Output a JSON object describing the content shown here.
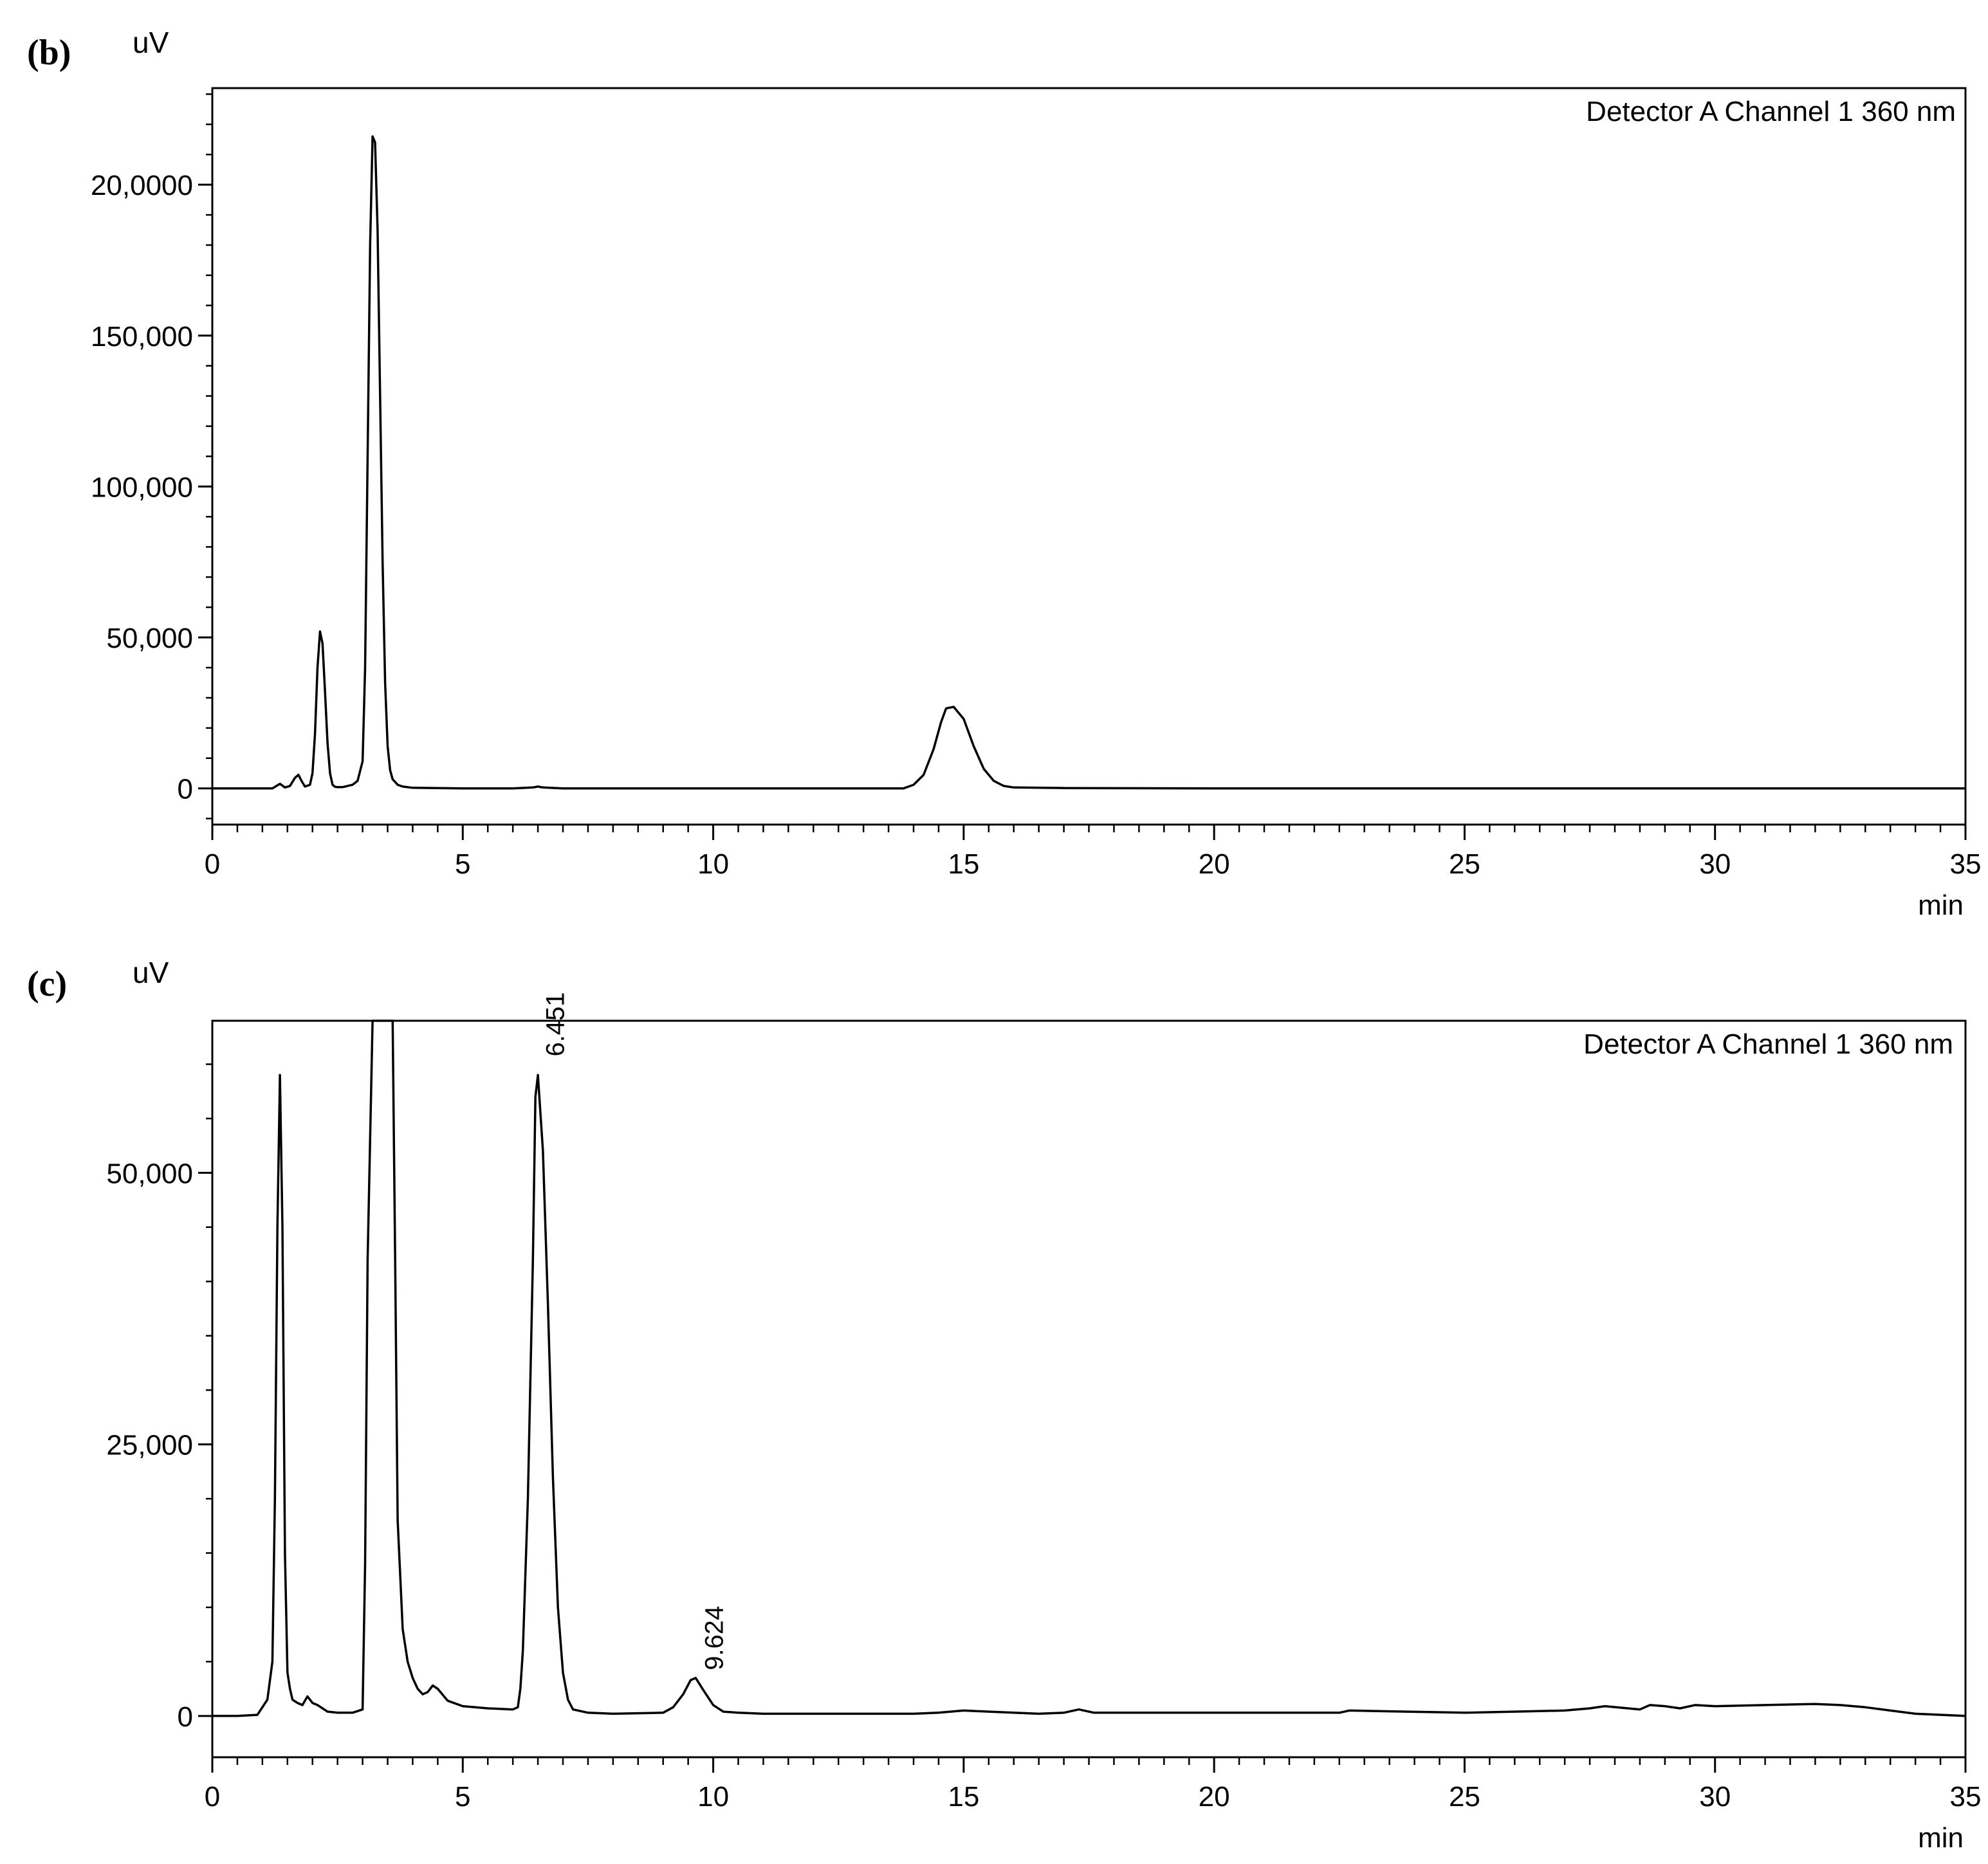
{
  "chart_data": [
    {
      "panel_label": "(b)",
      "type": "line",
      "y_unit_label": "uV",
      "x_unit_label": "min",
      "legend": "Detector A Channel 1 360 nm",
      "xlim": [
        0,
        35
      ],
      "ylim": [
        -12000,
        232000
      ],
      "x_ticks": [
        0,
        5,
        10,
        15,
        20,
        25,
        30,
        35
      ],
      "x_tick_labels": [
        "0",
        "5",
        "10",
        "15",
        "20",
        "25",
        "30",
        "35"
      ],
      "y_ticks": [
        0,
        50000,
        100000,
        150000,
        200000
      ],
      "y_tick_labels": [
        "0",
        "50,000",
        "100,000",
        "150,000",
        "20,0000"
      ],
      "x_minor_step": 0.5,
      "y_minor_step": 10000,
      "grid": false,
      "series": [
        {
          "x": [
            0,
            1.2,
            1.35,
            1.45,
            1.55,
            1.65,
            1.72,
            1.78,
            1.85,
            1.95,
            2.0,
            2.05,
            2.1,
            2.15,
            2.2,
            2.25,
            2.3,
            2.35,
            2.4,
            2.45,
            2.5,
            2.55,
            2.6,
            2.65,
            2.7,
            2.8,
            2.9,
            3.0,
            3.05,
            3.1,
            3.15,
            3.2,
            3.25,
            3.3,
            3.35,
            3.4,
            3.45,
            3.5,
            3.55,
            3.6,
            3.7,
            3.8,
            4.0,
            4.5,
            5.0,
            6.0,
            6.4,
            6.5,
            6.6,
            7.0,
            8.0,
            9.0,
            10.0,
            11.0,
            12.0,
            13.0,
            13.8,
            14.0,
            14.2,
            14.4,
            14.55,
            14.65,
            14.8,
            15.0,
            15.2,
            15.4,
            15.6,
            15.8,
            16.0,
            17.0,
            20.0,
            25.0,
            30.0,
            35.0
          ],
          "y": [
            0,
            0,
            1500,
            300,
            800,
            3500,
            4500,
            2500,
            600,
            1200,
            5000,
            18000,
            40000,
            52000,
            48000,
            32000,
            15000,
            5000,
            1200,
            500,
            400,
            400,
            400,
            600,
            800,
            1200,
            2500,
            9000,
            40000,
            110000,
            180000,
            216000,
            214000,
            185000,
            130000,
            75000,
            35000,
            14000,
            6000,
            3000,
            1200,
            600,
            200,
            100,
            0,
            0,
            300,
            600,
            300,
            0,
            0,
            0,
            0,
            0,
            0,
            0,
            0,
            1200,
            4500,
            13000,
            22000,
            26500,
            27000,
            23000,
            14000,
            6500,
            2500,
            800,
            300,
            100,
            0,
            0,
            0,
            0
          ]
        }
      ]
    },
    {
      "panel_label": "(c)",
      "type": "line",
      "y_unit_label": "uV",
      "x_unit_label": "min",
      "legend": "Detector A Channel 1 360 nm",
      "xlim": [
        0,
        35
      ],
      "ylim": [
        -3800,
        64000
      ],
      "x_ticks": [
        0,
        5,
        10,
        15,
        20,
        25,
        30,
        35
      ],
      "x_tick_labels": [
        "0",
        "5",
        "10",
        "15",
        "20",
        "25",
        "30",
        "35"
      ],
      "y_ticks": [
        0,
        25000,
        50000
      ],
      "y_tick_labels": [
        "0",
        "25,000",
        "50,000"
      ],
      "x_minor_step": 0.5,
      "y_minor_step": 5000,
      "grid": false,
      "peak_annotations": [
        {
          "x": 6.451,
          "y": 60000,
          "label": "6.451"
        },
        {
          "x": 9.624,
          "y": 3500,
          "label": "9.624"
        }
      ],
      "series": [
        {
          "x": [
            0,
            0.5,
            0.9,
            1.1,
            1.2,
            1.25,
            1.3,
            1.35,
            1.4,
            1.45,
            1.5,
            1.55,
            1.6,
            1.7,
            1.8,
            1.9,
            2.0,
            2.1,
            2.2,
            2.3,
            2.5,
            2.8,
            3.0,
            3.05,
            3.1,
            3.2,
            3.3,
            3.4,
            3.5,
            3.6,
            3.65,
            3.7,
            3.8,
            3.9,
            4.0,
            4.1,
            4.2,
            4.3,
            4.4,
            4.5,
            4.7,
            5.0,
            5.5,
            6.0,
            6.1,
            6.15,
            6.2,
            6.3,
            6.4,
            6.45,
            6.5,
            6.6,
            6.7,
            6.8,
            6.9,
            7.0,
            7.1,
            7.2,
            7.5,
            8.0,
            9.0,
            9.2,
            9.4,
            9.55,
            9.65,
            9.8,
            10.0,
            10.2,
            10.5,
            11.0,
            12.0,
            14.0,
            14.5,
            15.0,
            15.5,
            16.5,
            17.0,
            17.3,
            17.6,
            20.0,
            22.5,
            22.7,
            25.0,
            26.0,
            27.0,
            27.5,
            27.8,
            28.5,
            28.7,
            29.0,
            29.3,
            29.6,
            30.0,
            31.0,
            32.0,
            32.5,
            33.0,
            33.5,
            34.0,
            35.0
          ],
          "y": [
            0,
            0,
            100,
            1500,
            5000,
            20000,
            45000,
            59000,
            45000,
            15000,
            4000,
            2500,
            1500,
            1200,
            1000,
            1800,
            1200,
            1000,
            700,
            400,
            300,
            300,
            600,
            14000,
            42000,
            64000,
            64000,
            64000,
            64000,
            64000,
            42000,
            18000,
            8000,
            5000,
            3500,
            2500,
            2000,
            2200,
            2800,
            2500,
            1400,
            900,
            700,
            600,
            800,
            2500,
            6000,
            20000,
            42000,
            57000,
            59000,
            52000,
            38000,
            22000,
            10000,
            4000,
            1500,
            600,
            300,
            200,
            300,
            800,
            2000,
            3300,
            3500,
            2400,
            1000,
            400,
            300,
            200,
            200,
            200,
            300,
            500,
            400,
            200,
            300,
            600,
            300,
            300,
            300,
            500,
            300,
            400,
            500,
            700,
            900,
            600,
            1000,
            900,
            700,
            1000,
            900,
            1000,
            1100,
            1000,
            800,
            500,
            200,
            0
          ]
        }
      ]
    }
  ]
}
